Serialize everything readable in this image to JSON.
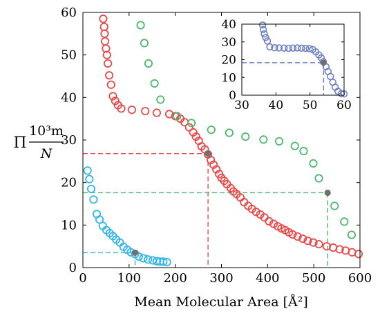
{
  "chart_data": [
    {
      "type": "scatter",
      "role": "main",
      "xlabel": "Mean Molecular Area [Å²]",
      "ylabel": {
        "symbol": "Π",
        "numerator": "10³m",
        "denominator": "N"
      },
      "xlim": [
        0,
        600
      ],
      "ylim": [
        0,
        60
      ],
      "xticks": [
        0,
        100,
        200,
        300,
        400,
        500,
        600
      ],
      "yticks": [
        0,
        10,
        20,
        30,
        40,
        50,
        60
      ],
      "grid": false,
      "legend": "none",
      "series": [
        {
          "color": "#33b5e8",
          "marker": "open-circle",
          "points": [
            [
              10,
              22.8
            ],
            [
              14,
              20.8
            ],
            [
              18,
              18.5
            ],
            [
              23,
              16.0
            ],
            [
              30,
              12.6
            ],
            [
              36,
              11.3
            ],
            [
              43,
              9.8
            ],
            [
              51,
              8.8
            ],
            [
              58,
              8.1
            ],
            [
              65,
              7.4
            ],
            [
              72,
              6.6
            ],
            [
              80,
              5.9
            ],
            [
              88,
              4.9
            ],
            [
              96,
              4.2
            ],
            [
              104,
              3.6
            ],
            [
              113,
              3.2
            ],
            [
              121,
              2.6
            ],
            [
              131,
              2.2
            ],
            [
              141,
              1.9
            ],
            [
              151,
              1.7
            ],
            [
              160,
              1.5
            ],
            [
              167,
              1.4
            ],
            [
              174,
              1.4
            ],
            [
              182,
              1.3
            ]
          ]
        },
        {
          "color": "#e84a4a",
          "marker": "open-circle",
          "points": [
            [
              44,
              58.5
            ],
            [
              46,
              56.6
            ],
            [
              47,
              55.0
            ],
            [
              48,
              53.2
            ],
            [
              50,
              51.5
            ],
            [
              52,
              50.0
            ],
            [
              54,
              48.0
            ],
            [
              57,
              45.2
            ],
            [
              61,
              43.0
            ],
            [
              65,
              40.3
            ],
            [
              70,
              39.2
            ],
            [
              76,
              38.2
            ],
            [
              83,
              37.4
            ],
            [
              106,
              37.1
            ],
            [
              135,
              36.8
            ],
            [
              160,
              36.4
            ],
            [
              187,
              36.1
            ],
            [
              200,
              35.6
            ],
            [
              211,
              35.0
            ],
            [
              220,
              34.2
            ],
            [
              230,
              33.0
            ],
            [
              239,
              31.8
            ],
            [
              245,
              30.8
            ],
            [
              251,
              29.8
            ],
            [
              257,
              28.5
            ],
            [
              264,
              27.8
            ],
            [
              271,
              26.6
            ],
            [
              277,
              25.3
            ],
            [
              283,
              24.2
            ],
            [
              289,
              23.1
            ],
            [
              295,
              22.0
            ],
            [
              300,
              21.1
            ],
            [
              306,
              20.4
            ],
            [
              312,
              19.6
            ],
            [
              320,
              18.7
            ],
            [
              326,
              17.9
            ],
            [
              333,
              17.3
            ],
            [
              341,
              16.5
            ],
            [
              349,
              15.4
            ],
            [
              358,
              14.5
            ],
            [
              366,
              13.8
            ],
            [
              375,
              13.1
            ],
            [
              384,
              12.5
            ],
            [
              393,
              11.8
            ],
            [
              403,
              10.9
            ],
            [
              413,
              10.3
            ],
            [
              422,
              9.7
            ],
            [
              430,
              9.2
            ],
            [
              438,
              8.8
            ],
            [
              446,
              8.3
            ],
            [
              454,
              7.8
            ],
            [
              465,
              7.3
            ],
            [
              476,
              6.8
            ],
            [
              487,
              6.3
            ],
            [
              499,
              5.9
            ],
            [
              511,
              5.5
            ],
            [
              528,
              5.0
            ],
            [
              542,
              4.7
            ],
            [
              556,
              4.3
            ],
            [
              569,
              4.0
            ],
            [
              583,
              3.6
            ],
            [
              597,
              3.2
            ]
          ]
        },
        {
          "color": "#4cb870",
          "marker": "open-circle",
          "points": [
            [
              125,
              57.0
            ],
            [
              133,
              52.8
            ],
            [
              142,
              48.0
            ],
            [
              155,
              43.3
            ],
            [
              168,
              39.5
            ],
            [
              204,
              35.6
            ],
            [
              235,
              34.0
            ],
            [
              278,
              32.4
            ],
            [
              317,
              31.7
            ],
            [
              352,
              30.8
            ],
            [
              391,
              30.1
            ],
            [
              425,
              29.7
            ],
            [
              459,
              28.6
            ],
            [
              478,
              27.4
            ],
            [
              499,
              24.5
            ],
            [
              511,
              21.0
            ],
            [
              545,
              14.5
            ],
            [
              566,
              10.8
            ],
            [
              582,
              7.7
            ]
          ]
        },
        {
          "color": "#707070",
          "marker": "filled-circle",
          "points": [
            [
              113,
              3.5
            ],
            [
              271,
              26.8
            ],
            [
              530,
              17.6
            ]
          ]
        }
      ],
      "guides": [
        {
          "color": "#33b5e8",
          "point": [
            113,
            3.5
          ]
        },
        {
          "color": "#e84a4a",
          "point": [
            271,
            26.8
          ]
        },
        {
          "color": "#4cb870",
          "point": [
            530,
            17.6
          ]
        }
      ]
    },
    {
      "type": "scatter",
      "role": "inset",
      "xlim": [
        30,
        60
      ],
      "ylim": [
        0,
        40
      ],
      "xticks": [
        30,
        40,
        50,
        60
      ],
      "yticks": [
        0,
        10,
        20,
        30,
        40
      ],
      "grid": false,
      "series": [
        {
          "color": "#6d7fc0",
          "marker": "open-circle",
          "points": [
            [
              36.1,
              39.5
            ],
            [
              36.3,
              37.0
            ],
            [
              36.6,
              34.5
            ],
            [
              37.0,
              32.5
            ],
            [
              37.5,
              30.5
            ],
            [
              38.2,
              27.2
            ],
            [
              39.6,
              26.7
            ],
            [
              40.9,
              26.6
            ],
            [
              42.4,
              26.5
            ],
            [
              43.7,
              26.4
            ],
            [
              45.0,
              26.5
            ],
            [
              46.3,
              26.6
            ],
            [
              47.5,
              26.5
            ],
            [
              48.7,
              26.4
            ],
            [
              49.8,
              26.2
            ],
            [
              50.8,
              25.7
            ],
            [
              51.7,
              24.4
            ],
            [
              52.6,
              22.7
            ],
            [
              53.3,
              21.0
            ],
            [
              53.9,
              18.8
            ],
            [
              54.7,
              16.0
            ],
            [
              55.3,
              13.3
            ],
            [
              56.0,
              10.5
            ],
            [
              56.7,
              7.3
            ],
            [
              57.4,
              4.5
            ],
            [
              58.2,
              2.2
            ],
            [
              59.2,
              0.9
            ],
            [
              60.0,
              0.7
            ]
          ]
        },
        {
          "color": "#707070",
          "marker": "filled-circle",
          "points": [
            [
              54.0,
              18.3
            ]
          ]
        }
      ],
      "guides": [
        {
          "color": "#6d7fc0",
          "point": [
            54.0,
            18.3
          ]
        }
      ]
    }
  ]
}
